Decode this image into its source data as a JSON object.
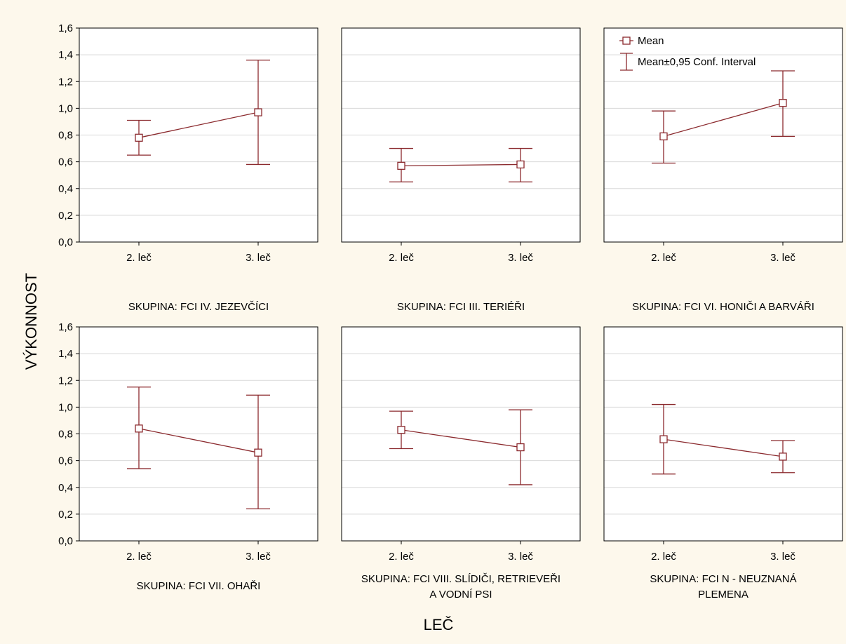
{
  "colors": {
    "background": "#fdf8ec",
    "plot_area": "#ffffff",
    "series": "#8b2a2e",
    "grid": "#d8d8d8",
    "axis": "#000000"
  },
  "chart_data": {
    "type": "line",
    "ylabel": "VÝKONNOST",
    "xlabel": "LEČ",
    "categories": [
      "2. leč",
      "3. leč"
    ],
    "yticks": [
      "0,0",
      "0,2",
      "0,4",
      "0,6",
      "0,8",
      "1,0",
      "1,2",
      "1,4",
      "1,6"
    ],
    "ylim": [
      0,
      1.6
    ],
    "grid": true,
    "legend": {
      "placement": "top-right",
      "mean": "Mean",
      "ci": "Mean±0,95 Conf. Interval"
    },
    "panels": [
      {
        "title": [
          "SKUPINA: FCI IV. JEZEVČÍCI"
        ],
        "mean": [
          0.78,
          0.97
        ],
        "lower": [
          0.65,
          0.58
        ],
        "upper": [
          0.91,
          1.36
        ]
      },
      {
        "title": [
          "SKUPINA: FCI III. TERIÉŘI"
        ],
        "mean": [
          0.57,
          0.58
        ],
        "lower": [
          0.45,
          0.45
        ],
        "upper": [
          0.7,
          0.7
        ]
      },
      {
        "title": [
          "SKUPINA: FCI VI. HONIČI A BARVÁŘI"
        ],
        "mean": [
          0.79,
          1.04
        ],
        "lower": [
          0.59,
          0.79
        ],
        "upper": [
          0.98,
          1.28
        ]
      },
      {
        "title": [
          "SKUPINA: FCI VII. OHAŘI"
        ],
        "mean": [
          0.84,
          0.66
        ],
        "lower": [
          0.54,
          0.24
        ],
        "upper": [
          1.15,
          1.09
        ]
      },
      {
        "title": [
          "SKUPINA: FCI VIII. SLÍDIČI, RETRIEVEŘI",
          "A VODNÍ PSI"
        ],
        "mean": [
          0.83,
          0.7
        ],
        "lower": [
          0.69,
          0.42
        ],
        "upper": [
          0.97,
          0.98
        ]
      },
      {
        "title": [
          "SKUPINA: FCI N - NEUZNANÁ",
          "PLEMENA"
        ],
        "mean": [
          0.76,
          0.63
        ],
        "lower": [
          0.5,
          0.51
        ],
        "upper": [
          1.02,
          0.75
        ]
      }
    ]
  }
}
